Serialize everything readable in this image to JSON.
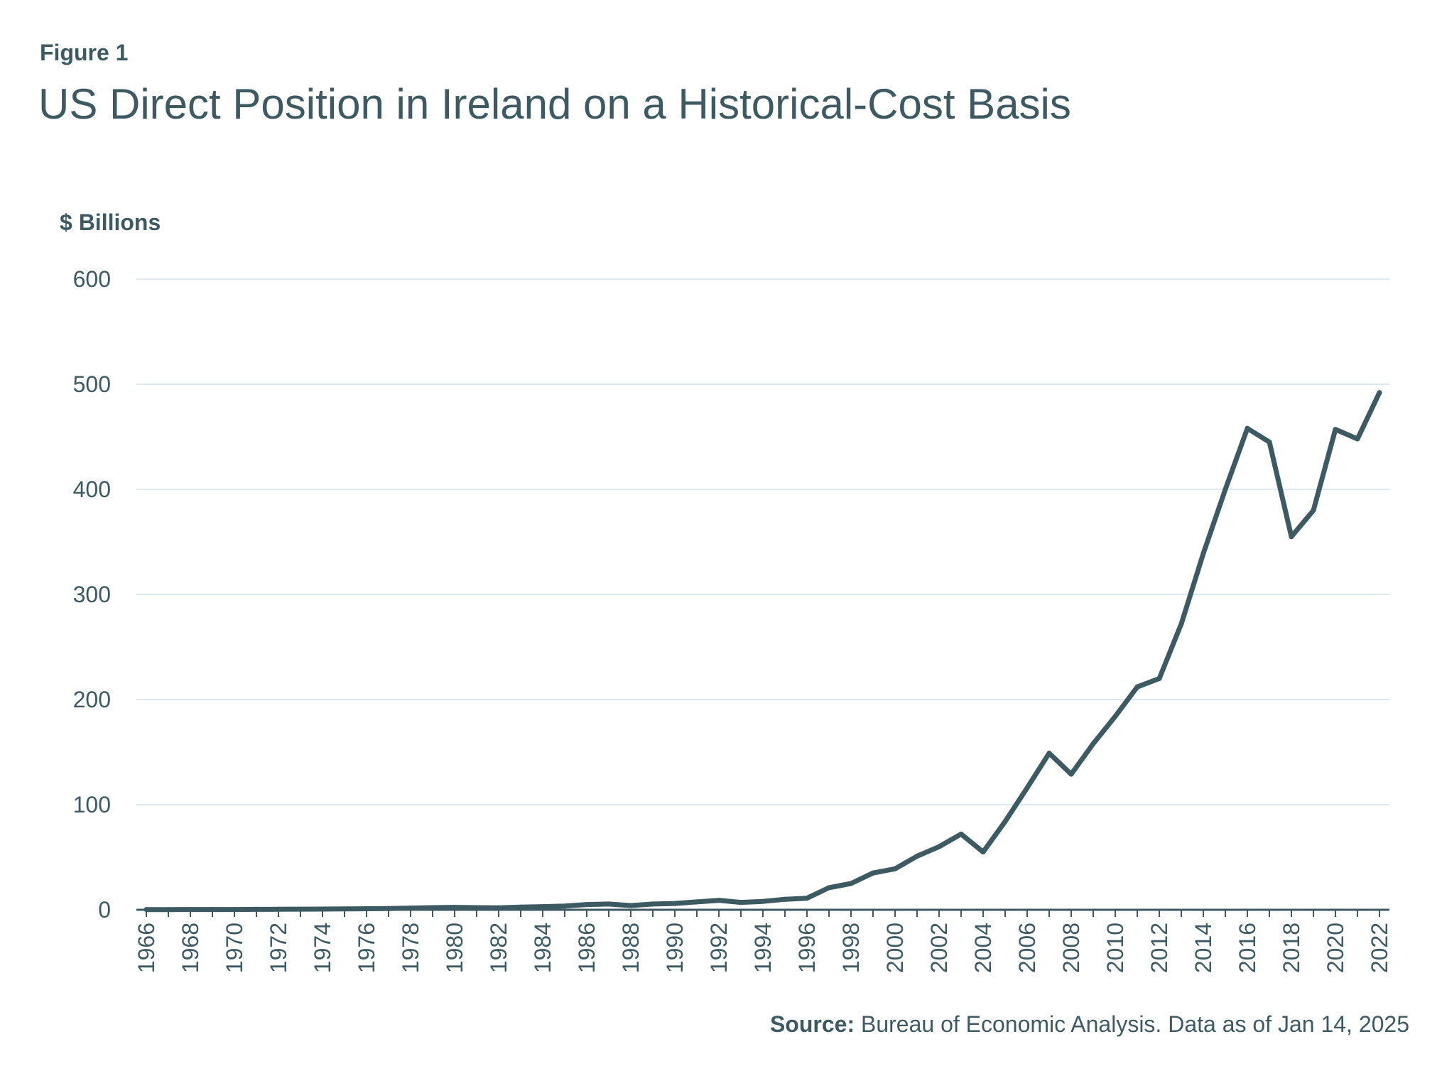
{
  "figure": {
    "label": "Figure 1",
    "title": "US Direct Position in Ireland on a Historical-Cost Basis"
  },
  "source": {
    "label": "Source:",
    "text": "Bureau of Economic Analysis. Data as of Jan 14, 2025"
  },
  "colors": {
    "line": "#3d5a63",
    "text": "#3d5a63",
    "grid": "#dbe9ee",
    "axis": "#3d5a63"
  },
  "chart_data": {
    "type": "line",
    "title": "US Direct Position in Ireland on a Historical-Cost Basis",
    "xlabel": "",
    "ylabel": "$ Billions",
    "ylim": [
      0,
      600
    ],
    "yticks": [
      0,
      100,
      200,
      300,
      400,
      500,
      600
    ],
    "grid": true,
    "x": [
      1966,
      1967,
      1968,
      1969,
      1970,
      1971,
      1972,
      1973,
      1974,
      1975,
      1976,
      1977,
      1978,
      1979,
      1980,
      1981,
      1982,
      1983,
      1984,
      1985,
      1986,
      1987,
      1988,
      1989,
      1990,
      1991,
      1992,
      1993,
      1994,
      1995,
      1996,
      1997,
      1998,
      1999,
      2000,
      2001,
      2002,
      2003,
      2004,
      2005,
      2006,
      2007,
      2008,
      2009,
      2010,
      2011,
      2012,
      2013,
      2014,
      2015,
      2016,
      2017,
      2018,
      2019,
      2020,
      2021,
      2022
    ],
    "xtick_labels": [
      "1966",
      "1968",
      "1970",
      "1972",
      "1974",
      "1976",
      "1978",
      "1980",
      "1982",
      "1984",
      "1986",
      "1988",
      "1990",
      "1992",
      "1994",
      "1996",
      "1998",
      "2000",
      "2002",
      "2004",
      "2006",
      "2008",
      "2010",
      "2012",
      "2014",
      "2016",
      "2018",
      "2020",
      "2022"
    ],
    "series": [
      {
        "name": "US Direct Position in Ireland",
        "values": [
          0.2,
          0.2,
          0.3,
          0.3,
          0.3,
          0.4,
          0.5,
          0.6,
          0.7,
          0.8,
          1.0,
          1.2,
          1.6,
          2.0,
          2.3,
          2.0,
          1.8,
          2.5,
          3.0,
          3.5,
          5.0,
          5.5,
          4.0,
          5.5,
          6.0,
          7.5,
          9.0,
          7.0,
          8.0,
          10.0,
          11.0,
          21.0,
          25.0,
          35.0,
          39.0,
          51.0,
          60.0,
          72.0,
          55.0,
          84.0,
          116.0,
          149.0,
          129.0,
          158.0,
          184.0,
          212.0,
          220.0,
          272.0,
          339.0,
          400.0,
          458.0,
          445.0,
          355.0,
          380.0,
          457.0,
          448.0,
          492.0
        ]
      }
    ]
  }
}
